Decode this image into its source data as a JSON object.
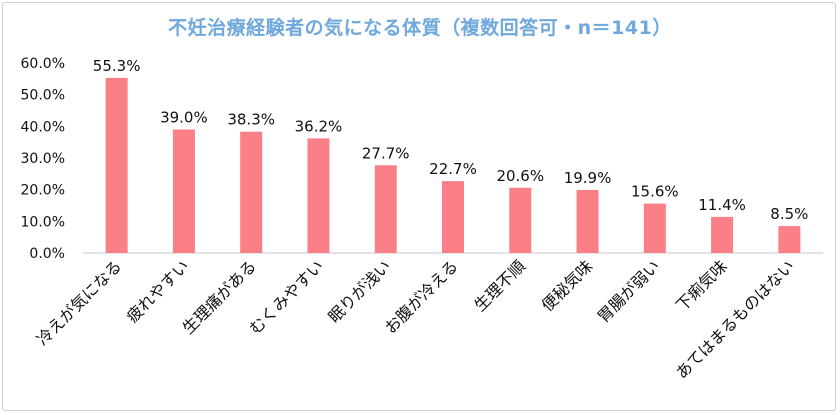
{
  "chart_data": {
    "type": "bar",
    "title": "不妊治療経験者の気になる体質（複数回答可・n＝141）",
    "categories": [
      "冷えが気になる",
      "疲れやすい",
      "生理痛がある",
      "むくみやすい",
      "眠りが浅い",
      "お腹が冷える",
      "生理不順",
      "便秘気味",
      "胃腸が弱い",
      "下痢気味",
      "あてはまるものはない"
    ],
    "values": [
      55.3,
      39.0,
      38.3,
      36.2,
      27.7,
      22.7,
      20.6,
      19.9,
      15.6,
      11.4,
      8.5
    ],
    "data_labels": [
      "55.3%",
      "39.0%",
      "38.3%",
      "36.2%",
      "27.7%",
      "22.7%",
      "20.6%",
      "19.9%",
      "15.6%",
      "11.4%",
      "8.5%"
    ],
    "y_ticks": [
      0,
      10,
      20,
      30,
      40,
      50,
      60
    ],
    "y_tick_labels": [
      "0.0%",
      "10.0%",
      "20.0%",
      "30.0%",
      "40.0%",
      "50.0%",
      "60.0%"
    ],
    "ylim": [
      0,
      60
    ],
    "grid": false,
    "legend": "none"
  },
  "colors": {
    "bar": "#fb7f86",
    "title": "#6fa8dc",
    "axis": "#c8c8c8",
    "text": "#111111"
  }
}
